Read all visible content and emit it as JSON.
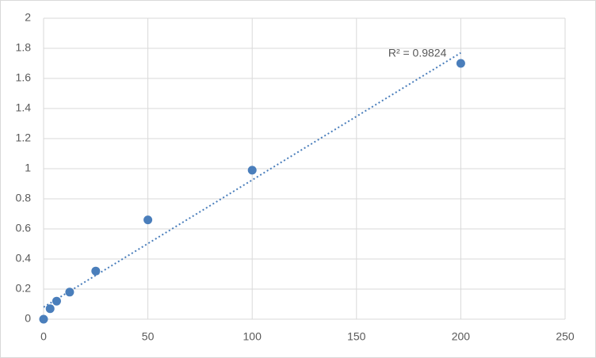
{
  "chart_data": {
    "type": "scatter",
    "x": [
      0,
      3.125,
      6.25,
      12.5,
      25,
      50,
      100,
      200
    ],
    "series": [
      {
        "color": "#4a7ebb",
        "values": [
          0,
          0.07,
          0.12,
          0.18,
          0.32,
          0.66,
          0.99,
          1.7
        ]
      }
    ],
    "trendline": {
      "x": [
        0,
        200
      ],
      "y": [
        0.08,
        1.77
      ],
      "color": "#4a7ebb",
      "label": "R² = 0.9824"
    },
    "xlim": [
      0,
      250
    ],
    "xticks": [
      0,
      50,
      100,
      150,
      200,
      250
    ],
    "ylim": [
      0,
      2
    ],
    "yticks": [
      0,
      0.2,
      0.4,
      0.6,
      0.8,
      1,
      1.2,
      1.4,
      1.6,
      1.8,
      2
    ],
    "grid": true
  }
}
